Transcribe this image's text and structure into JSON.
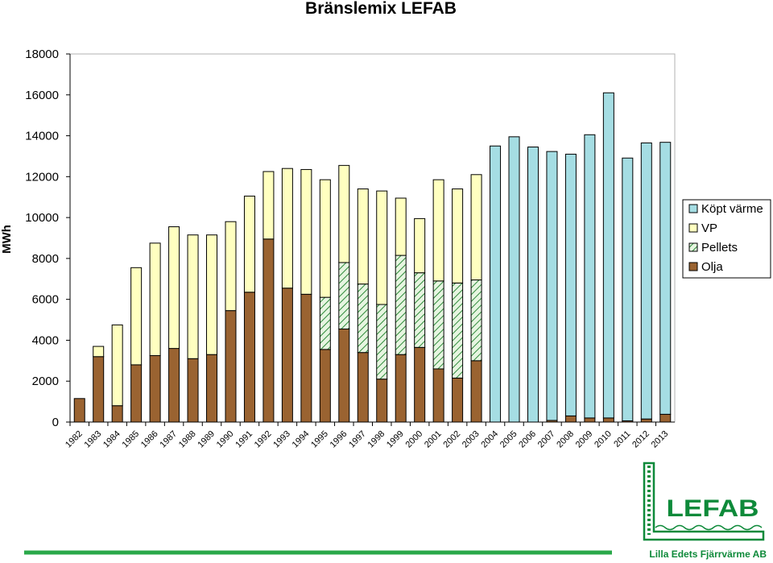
{
  "chart_data": {
    "type": "bar",
    "stacked": true,
    "title": "Bränslemix LEFAB",
    "ylabel": "MWh",
    "xlabel": "",
    "ylim": [
      0,
      18000
    ],
    "yticks": [
      0,
      2000,
      4000,
      6000,
      8000,
      10000,
      12000,
      14000,
      16000,
      18000
    ],
    "grid": false,
    "legend_position": "right",
    "categories": [
      "1982",
      "1983",
      "1984",
      "1985",
      "1986",
      "1987",
      "1988",
      "1989",
      "1990",
      "1991",
      "1992",
      "1993",
      "1994",
      "1995",
      "1996",
      "1997",
      "1998",
      "1999",
      "2000",
      "2001",
      "2002",
      "2003",
      "2004",
      "2005",
      "2006",
      "2007",
      "2008",
      "2009",
      "2010",
      "2011",
      "2012",
      "2013"
    ],
    "series": [
      {
        "name": "Olja",
        "color": "#9a6331",
        "pattern": "solid",
        "values": [
          1150,
          3200,
          800,
          2800,
          3250,
          3600,
          3100,
          3300,
          5450,
          6350,
          8950,
          6550,
          6250,
          3550,
          4550,
          3400,
          2100,
          3300,
          3650,
          2600,
          2150,
          3000,
          0,
          0,
          0,
          80,
          300,
          200,
          200,
          60,
          150,
          380
        ]
      },
      {
        "name": "Pellets",
        "color": "#bde3b0",
        "pattern": "hatch",
        "values": [
          0,
          0,
          0,
          0,
          0,
          0,
          0,
          0,
          0,
          0,
          0,
          0,
          0,
          2550,
          3250,
          3350,
          3650,
          4850,
          3650,
          4300,
          4650,
          3950,
          0,
          0,
          0,
          0,
          0,
          0,
          0,
          0,
          0,
          0
        ]
      },
      {
        "name": "VP",
        "color": "#ffffc0",
        "pattern": "solid",
        "values": [
          0,
          500,
          3950,
          4750,
          5500,
          5950,
          6050,
          5850,
          4350,
          4700,
          3300,
          5850,
          6100,
          5750,
          4750,
          4650,
          5550,
          2800,
          2650,
          4950,
          4600,
          5150,
          0,
          0,
          0,
          0,
          0,
          0,
          0,
          0,
          0,
          0
        ]
      },
      {
        "name": "Köpt värme",
        "color": "#a5dde3",
        "pattern": "solid",
        "values": [
          0,
          0,
          0,
          0,
          0,
          0,
          0,
          0,
          0,
          0,
          0,
          0,
          0,
          0,
          0,
          0,
          0,
          0,
          0,
          0,
          0,
          0,
          13500,
          13950,
          13450,
          13150,
          12800,
          13850,
          15900,
          12850,
          13500,
          13300
        ]
      }
    ],
    "legend_order": [
      "Köpt värme",
      "VP",
      "Pellets",
      "Olja"
    ]
  },
  "logo": {
    "name": "LEFAB",
    "subtitle": "Lilla Edets Fjärrvärme AB",
    "color": "#0e8a3a"
  }
}
